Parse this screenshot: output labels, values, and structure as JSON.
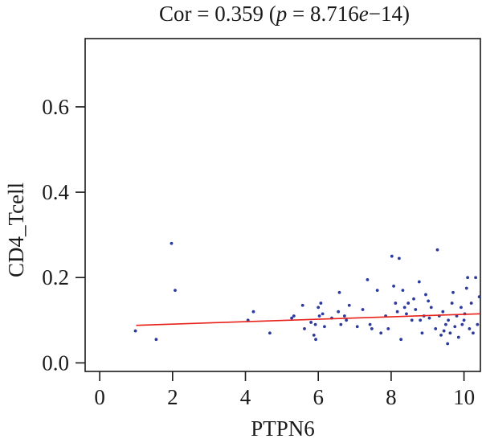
{
  "chart_data": {
    "type": "scatter",
    "title": {
      "prefix": "Cor = 0.359 (",
      "p_symbol": "p",
      "eq": " = 8.716",
      "e_symbol": "e",
      "suffix": "−14)"
    },
    "xlabel": "PTPN6",
    "ylabel": "CD4_Tcell",
    "xlim": [
      -0.4,
      10.45
    ],
    "ylim": [
      -0.02,
      0.76
    ],
    "xticks": [
      0,
      2,
      4,
      6,
      8,
      10
    ],
    "xtick_labels": [
      "0",
      "2",
      "4",
      "6",
      "8",
      "10"
    ],
    "yticks": [
      0.0,
      0.2,
      0.4,
      0.6
    ],
    "ytick_labels": [
      "0.0",
      "0.2",
      "0.4",
      "0.6"
    ],
    "point_color": "#2b3a9e",
    "fit_color": "#e8221b",
    "fit_line": {
      "x": [
        1.0,
        10.45
      ],
      "y": [
        0.088,
        0.115
      ]
    },
    "grid": false,
    "points": [
      [
        0.98,
        0.075
      ],
      [
        1.55,
        0.055
      ],
      [
        1.97,
        0.28
      ],
      [
        2.07,
        0.17
      ],
      [
        4.07,
        0.1
      ],
      [
        4.22,
        0.12
      ],
      [
        4.67,
        0.07
      ],
      [
        5.27,
        0.105
      ],
      [
        5.33,
        0.11
      ],
      [
        5.57,
        0.135
      ],
      [
        5.62,
        0.08
      ],
      [
        5.8,
        0.095
      ],
      [
        5.88,
        0.065
      ],
      [
        5.92,
        0.09
      ],
      [
        5.93,
        0.055
      ],
      [
        6.0,
        0.13
      ],
      [
        6.03,
        0.11
      ],
      [
        6.07,
        0.14
      ],
      [
        6.12,
        0.115
      ],
      [
        6.17,
        0.085
      ],
      [
        6.37,
        0.105
      ],
      [
        6.55,
        0.12
      ],
      [
        6.58,
        0.165
      ],
      [
        6.62,
        0.09
      ],
      [
        6.72,
        0.11
      ],
      [
        6.77,
        0.1
      ],
      [
        6.85,
        0.135
      ],
      [
        7.07,
        0.085
      ],
      [
        7.22,
        0.125
      ],
      [
        7.35,
        0.195
      ],
      [
        7.42,
        0.09
      ],
      [
        7.47,
        0.08
      ],
      [
        7.62,
        0.17
      ],
      [
        7.72,
        0.07
      ],
      [
        7.85,
        0.11
      ],
      [
        7.92,
        0.08
      ],
      [
        8.02,
        0.25
      ],
      [
        8.07,
        0.18
      ],
      [
        8.12,
        0.14
      ],
      [
        8.17,
        0.12
      ],
      [
        8.22,
        0.245
      ],
      [
        8.27,
        0.055
      ],
      [
        8.32,
        0.17
      ],
      [
        8.37,
        0.13
      ],
      [
        8.42,
        0.115
      ],
      [
        8.47,
        0.14
      ],
      [
        8.57,
        0.1
      ],
      [
        8.62,
        0.15
      ],
      [
        8.67,
        0.125
      ],
      [
        8.77,
        0.19
      ],
      [
        8.8,
        0.1
      ],
      [
        8.85,
        0.07
      ],
      [
        8.9,
        0.11
      ],
      [
        8.95,
        0.16
      ],
      [
        9.02,
        0.145
      ],
      [
        9.05,
        0.105
      ],
      [
        9.1,
        0.13
      ],
      [
        9.22,
        0.08
      ],
      [
        9.27,
        0.265
      ],
      [
        9.32,
        0.11
      ],
      [
        9.37,
        0.065
      ],
      [
        9.42,
        0.12
      ],
      [
        9.45,
        0.075
      ],
      [
        9.5,
        0.09
      ],
      [
        9.55,
        0.045
      ],
      [
        9.57,
        0.1
      ],
      [
        9.62,
        0.07
      ],
      [
        9.67,
        0.14
      ],
      [
        9.7,
        0.165
      ],
      [
        9.75,
        0.085
      ],
      [
        9.8,
        0.11
      ],
      [
        9.85,
        0.06
      ],
      [
        9.92,
        0.13
      ],
      [
        9.95,
        0.09
      ],
      [
        10.0,
        0.1
      ],
      [
        10.02,
        0.115
      ],
      [
        10.07,
        0.175
      ],
      [
        10.1,
        0.2
      ],
      [
        10.15,
        0.08
      ],
      [
        10.2,
        0.14
      ],
      [
        10.25,
        0.07
      ],
      [
        10.32,
        0.2
      ],
      [
        10.37,
        0.09
      ],
      [
        10.42,
        0.155
      ]
    ]
  }
}
